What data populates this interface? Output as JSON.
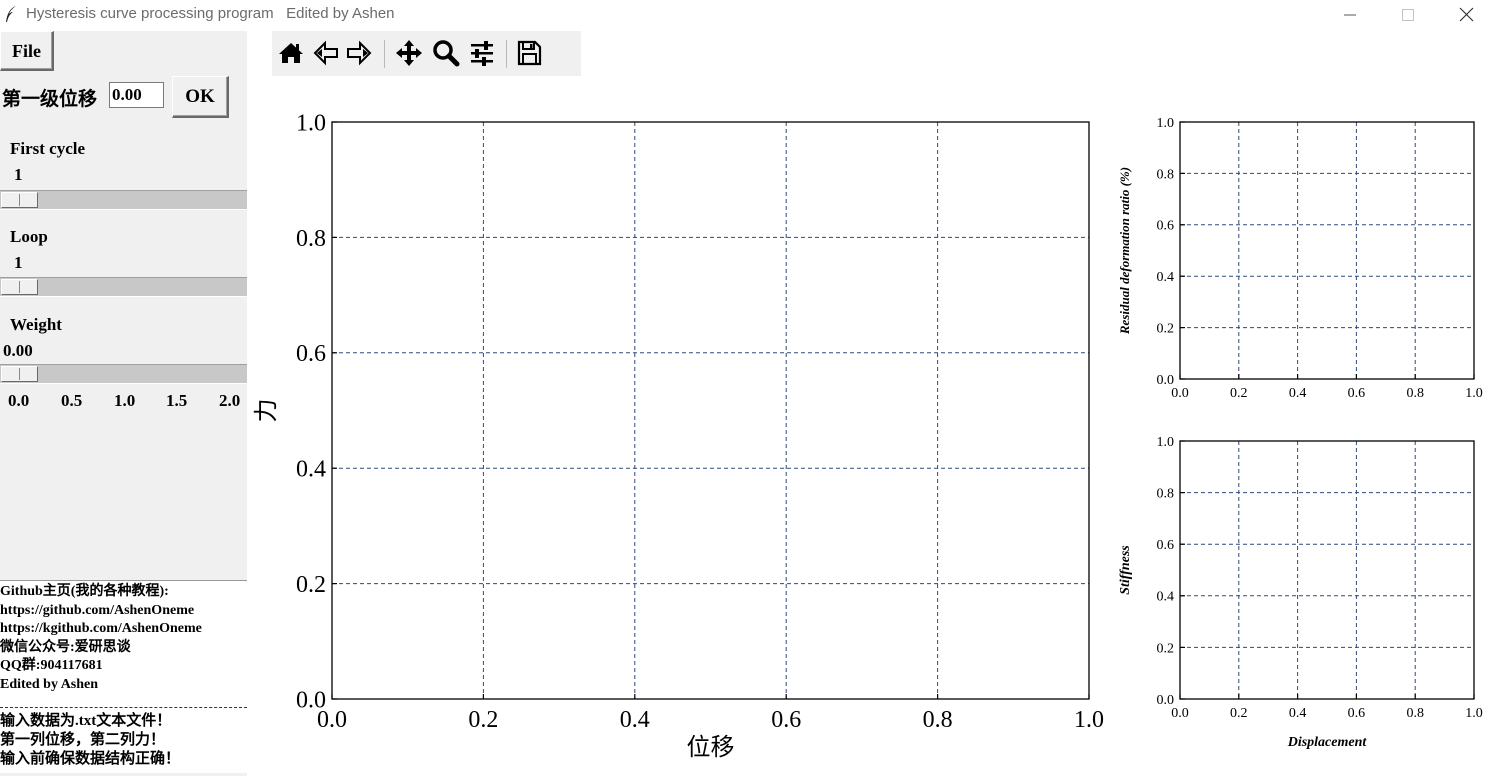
{
  "window": {
    "title": "Hysteresis curve processing program   Edited by Ashen",
    "controls": [
      "minimize",
      "maximize",
      "close"
    ]
  },
  "left_panel": {
    "file_button": "File",
    "first_disp_label": "第一级位移",
    "first_disp_value": "0.00",
    "ok_button": "OK",
    "first_cycle": {
      "label": "First cycle",
      "value": "1"
    },
    "loop": {
      "label": "Loop",
      "value": "1"
    },
    "weight": {
      "label": "Weight",
      "value": "0.00",
      "ticks": [
        "0.0",
        "0.5",
        "1.0",
        "1.5",
        "2.0"
      ]
    },
    "info_lines": [
      "Github主页(我的各种教程):",
      "https://github.com/AshenOneme",
      "https://kgithub.com/AshenOneme",
      "微信公众号:爱研思谈",
      "QQ群:904117681",
      "Edited by Ashen"
    ],
    "notice_lines": [
      "输入数据为.txt文本文件！",
      "第一列位移，第二列力！",
      "输入前确保数据结构正确！"
    ]
  },
  "toolbar": {
    "tools": [
      "home-icon",
      "back-icon",
      "forward-icon",
      "pan-icon",
      "zoom-icon",
      "configure-subplots-icon",
      "save-icon"
    ]
  },
  "colors": {
    "grid": "#2f4a7c",
    "panel_bg": "#f0f0f0",
    "title_text": "#6b6b6b"
  },
  "chart_data": [
    {
      "type": "line",
      "title": "",
      "xlabel": "位移",
      "ylabel": "力",
      "xlim": [
        0,
        1
      ],
      "ylim": [
        0,
        1
      ],
      "xticks": [
        "0.0",
        "0.2",
        "0.4",
        "0.6",
        "0.8",
        "1.0"
      ],
      "yticks": [
        "0.0",
        "0.2",
        "0.4",
        "0.6",
        "0.8",
        "1.0"
      ],
      "grid": true,
      "series": []
    },
    {
      "type": "line",
      "title": "",
      "xlabel": "",
      "ylabel": "Residual deformation ratio (%)",
      "xlim": [
        0,
        1
      ],
      "ylim": [
        0,
        1
      ],
      "xticks": [
        "0.0",
        "0.2",
        "0.4",
        "0.6",
        "0.8",
        "1.0"
      ],
      "yticks": [
        "0.0",
        "0.2",
        "0.4",
        "0.6",
        "0.8",
        "1.0"
      ],
      "grid": true,
      "series": []
    },
    {
      "type": "line",
      "title": "",
      "xlabel": "Displacement",
      "ylabel": "Stiffness",
      "xlim": [
        0,
        1
      ],
      "ylim": [
        0,
        1
      ],
      "xticks": [
        "0.0",
        "0.2",
        "0.4",
        "0.6",
        "0.8",
        "1.0"
      ],
      "yticks": [
        "0.0",
        "0.2",
        "0.4",
        "0.6",
        "0.8",
        "1.0"
      ],
      "grid": true,
      "series": []
    }
  ]
}
